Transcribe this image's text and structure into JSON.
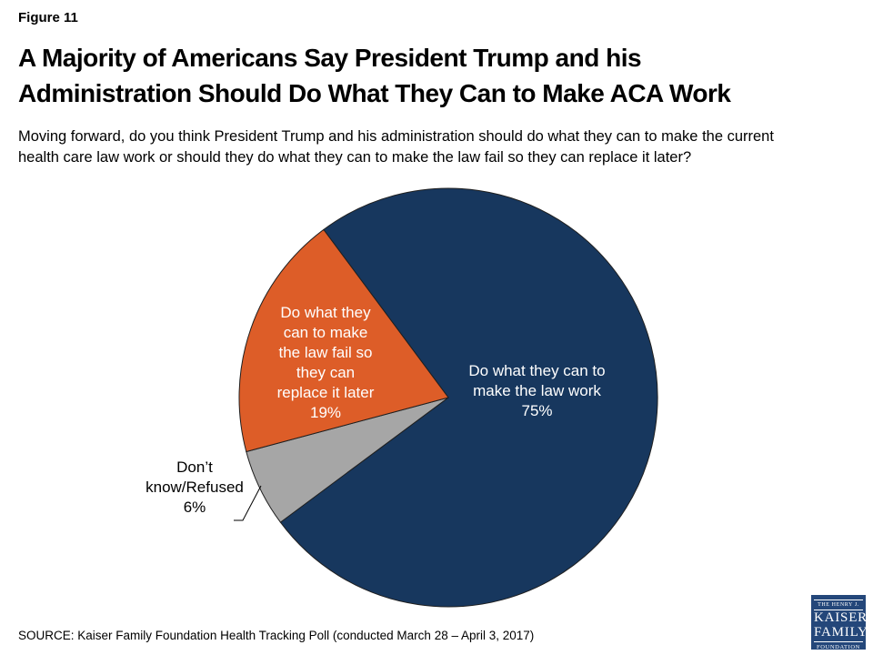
{
  "header": {
    "figure_label": "Figure 11",
    "title": "A Majority of Americans Say President Trump and his\nAdministration Should Do What They Can to Make ACA Work",
    "question": "Moving forward, do you think President Trump and his administration should do what they can to make the current\nhealth care law work or should they do what they can to make the law fail so they can replace it later?"
  },
  "chart_data": {
    "type": "pie",
    "title": "",
    "direction": "clockwise",
    "start_angle_deg": 323.4,
    "stroke_color": "#1F1F1F",
    "slices": [
      {
        "label": "Do what they can to make the law work",
        "value": 75,
        "color": "#17375E",
        "label_color": "#FFFFFF",
        "label_text": "Do what they can to\nmake the law work\n75%"
      },
      {
        "label": "Don’t know/Refused",
        "value": 6,
        "color": "#A6A6A6",
        "label_color": "#000000",
        "label_text": "Don’t\nknow/Refused\n6%"
      },
      {
        "label": "Do what they can to make the law fail so they can replace it later",
        "value": 19,
        "color": "#DD5D28",
        "label_color": "#FFFFFF",
        "label_text": "Do what they\ncan to make\nthe law fail so\nthey can\nreplace it later\n19%"
      }
    ]
  },
  "footer": {
    "source": "SOURCE: Kaiser Family Foundation Health Tracking Poll (conducted March 28 – April 3, 2017)",
    "logo": {
      "line1": "THE HENRY J.",
      "line2": "KAISER",
      "line3": "FAMILY",
      "line4": "FOUNDATION",
      "background": "#24477A"
    }
  }
}
